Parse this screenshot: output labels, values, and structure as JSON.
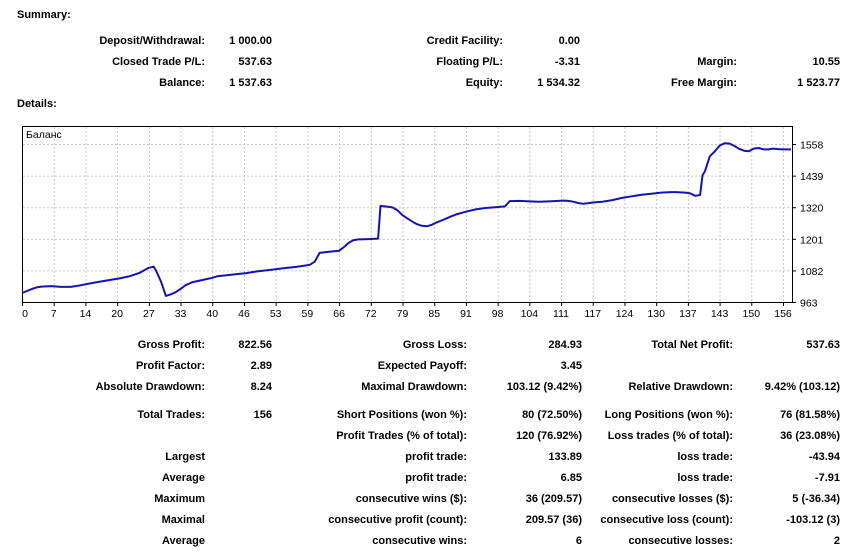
{
  "summary": {
    "heading": "Summary:",
    "rows": [
      {
        "cells": [
          {
            "label": "Deposit/Withdrawal:",
            "value": "1 000.00"
          },
          {
            "label": "Credit Facility:",
            "value": "0.00"
          },
          {
            "label": "",
            "value": ""
          }
        ]
      },
      {
        "cells": [
          {
            "label": "Closed Trade P/L:",
            "value": "537.63"
          },
          {
            "label": "Floating P/L:",
            "value": "-3.31"
          },
          {
            "label": "Margin:",
            "value": "10.55"
          }
        ]
      },
      {
        "cells": [
          {
            "label": "Balance:",
            "value": "1 537.63"
          },
          {
            "label": "Equity:",
            "value": "1 534.32"
          },
          {
            "label": "Free Margin:",
            "value": "1 523.77"
          }
        ]
      }
    ]
  },
  "details": {
    "heading": "Details:",
    "rows": [
      {
        "cells": [
          {
            "label": "Gross Profit:",
            "value": "822.56"
          },
          {
            "label": "Gross Loss:",
            "value": "284.93"
          },
          {
            "label": "Total Net Profit:",
            "value": "537.63"
          }
        ]
      },
      {
        "cells": [
          {
            "label": "Profit Factor:",
            "value": "2.89"
          },
          {
            "label": "Expected Payoff:",
            "value": "3.45"
          },
          {
            "label": "",
            "value": ""
          }
        ]
      },
      {
        "cells": [
          {
            "label": "Absolute Drawdown:",
            "value": "8.24"
          },
          {
            "label": "Maximal Drawdown:",
            "value": "103.12 (9.42%)"
          },
          {
            "label": "Relative Drawdown:",
            "value": "9.42% (103.12)"
          }
        ]
      },
      {
        "gap_before": true,
        "cells": [
          {
            "label": "Total Trades:",
            "value": "156"
          },
          {
            "label": "Short Positions (won %):",
            "value": "80 (72.50%)"
          },
          {
            "label": "Long Positions (won %):",
            "value": "76 (81.58%)"
          }
        ]
      },
      {
        "cells": [
          {
            "label": "",
            "value": ""
          },
          {
            "label": "Profit Trades (% of total):",
            "value": "120 (76.92%)"
          },
          {
            "label": "Loss trades (% of total):",
            "value": "36 (23.08%)"
          }
        ]
      },
      {
        "cells": [
          {
            "label": "Largest",
            "value": ""
          },
          {
            "label": "profit trade:",
            "value": "133.89"
          },
          {
            "label": "loss trade:",
            "value": "-43.94"
          }
        ]
      },
      {
        "cells": [
          {
            "label": "Average",
            "value": ""
          },
          {
            "label": "profit trade:",
            "value": "6.85"
          },
          {
            "label": "loss trade:",
            "value": "-7.91"
          }
        ]
      },
      {
        "cells": [
          {
            "label": "Maximum",
            "value": ""
          },
          {
            "label": "consecutive wins ($):",
            "value": "36 (209.57)"
          },
          {
            "label": "consecutive losses ($):",
            "value": "5 (-36.34)"
          }
        ]
      },
      {
        "cells": [
          {
            "label": "Maximal",
            "value": ""
          },
          {
            "label": "consecutive profit (count):",
            "value": "209.57 (36)"
          },
          {
            "label": "consecutive loss (count):",
            "value": "-103.12 (3)"
          }
        ]
      },
      {
        "cells": [
          {
            "label": "Average",
            "value": ""
          },
          {
            "label": "consecutive wins:",
            "value": "6"
          },
          {
            "label": "consecutive losses:",
            "value": "2"
          }
        ]
      }
    ]
  },
  "chart_data": {
    "type": "line",
    "title": "Баланс",
    "legend": "none",
    "grid": true,
    "line_color": "#1414B4",
    "grid_color": "#c6c6c6",
    "x_tick_labels": [
      "0",
      "7",
      "14",
      "20",
      "27",
      "33",
      "40",
      "46",
      "53",
      "59",
      "66",
      "72",
      "79",
      "85",
      "91",
      "98",
      "104",
      "111",
      "117",
      "124",
      "130",
      "137",
      "143",
      "150",
      "156"
    ],
    "y_ticks": [
      963,
      1082,
      1201,
      1320,
      1439,
      1558
    ],
    "xlim": [
      0,
      158
    ],
    "ylim": [
      963,
      1626
    ],
    "series": [
      {
        "name": "Баланс",
        "points": [
          [
            0,
            997
          ],
          [
            1,
            1004
          ],
          [
            2,
            1012
          ],
          [
            3,
            1018
          ],
          [
            4,
            1021
          ],
          [
            6,
            1023
          ],
          [
            8,
            1020
          ],
          [
            10,
            1020
          ],
          [
            12,
            1026
          ],
          [
            14,
            1033
          ],
          [
            16,
            1040
          ],
          [
            18,
            1046
          ],
          [
            20,
            1052
          ],
          [
            22,
            1060
          ],
          [
            24,
            1072
          ],
          [
            25,
            1082
          ],
          [
            26,
            1092
          ],
          [
            27,
            1096
          ],
          [
            27.5,
            1080
          ],
          [
            28.5,
            1040
          ],
          [
            29.5,
            986
          ],
          [
            30.5,
            992
          ],
          [
            31.5,
            1000
          ],
          [
            32.5,
            1012
          ],
          [
            33.5,
            1026
          ],
          [
            35,
            1038
          ],
          [
            37,
            1046
          ],
          [
            39,
            1054
          ],
          [
            40,
            1060
          ],
          [
            42,
            1064
          ],
          [
            44,
            1068
          ],
          [
            46,
            1072
          ],
          [
            48,
            1078
          ],
          [
            50,
            1082
          ],
          [
            52,
            1086
          ],
          [
            54,
            1091
          ],
          [
            56,
            1095
          ],
          [
            58,
            1100
          ],
          [
            59,
            1103
          ],
          [
            60,
            1115
          ],
          [
            61,
            1148
          ],
          [
            63,
            1152
          ],
          [
            65,
            1156
          ],
          [
            66,
            1170
          ],
          [
            67,
            1186
          ],
          [
            68,
            1196
          ],
          [
            69,
            1199
          ],
          [
            71,
            1200
          ],
          [
            73,
            1202
          ],
          [
            73.5,
            1325
          ],
          [
            75,
            1322
          ],
          [
            76,
            1319
          ],
          [
            77,
            1308
          ],
          [
            78,
            1290
          ],
          [
            79,
            1278
          ],
          [
            80,
            1266
          ],
          [
            81,
            1256
          ],
          [
            82,
            1250
          ],
          [
            83,
            1248
          ],
          [
            84,
            1254
          ],
          [
            85,
            1263
          ],
          [
            86,
            1270
          ],
          [
            87,
            1278
          ],
          [
            88,
            1286
          ],
          [
            89,
            1293
          ],
          [
            91,
            1303
          ],
          [
            93,
            1312
          ],
          [
            95,
            1317
          ],
          [
            97,
            1320
          ],
          [
            99,
            1323
          ],
          [
            100,
            1343
          ],
          [
            102,
            1344
          ],
          [
            104,
            1342
          ],
          [
            106,
            1341
          ],
          [
            108,
            1342
          ],
          [
            110,
            1344
          ],
          [
            111,
            1345
          ],
          [
            112,
            1344
          ],
          [
            113,
            1341
          ],
          [
            114,
            1336
          ],
          [
            115,
            1333
          ],
          [
            116,
            1335
          ],
          [
            117,
            1338
          ],
          [
            119,
            1341
          ],
          [
            121,
            1347
          ],
          [
            123,
            1355
          ],
          [
            125,
            1361
          ],
          [
            127,
            1367
          ],
          [
            129,
            1371
          ],
          [
            131,
            1375
          ],
          [
            133,
            1377
          ],
          [
            134,
            1377
          ],
          [
            135,
            1376
          ],
          [
            136,
            1375
          ],
          [
            137,
            1372
          ],
          [
            138,
            1363
          ],
          [
            139,
            1366
          ],
          [
            139.5,
            1440
          ],
          [
            140,
            1455
          ],
          [
            141,
            1512
          ],
          [
            142,
            1530
          ],
          [
            143,
            1552
          ],
          [
            144,
            1561
          ],
          [
            145,
            1560
          ],
          [
            146,
            1551
          ],
          [
            147,
            1540
          ],
          [
            148,
            1533
          ],
          [
            149,
            1531
          ],
          [
            150,
            1541
          ],
          [
            151,
            1543
          ],
          [
            152,
            1538
          ],
          [
            153,
            1538
          ],
          [
            154,
            1541
          ],
          [
            155,
            1539
          ],
          [
            156,
            1538
          ],
          [
            157,
            1538
          ]
        ]
      }
    ]
  }
}
